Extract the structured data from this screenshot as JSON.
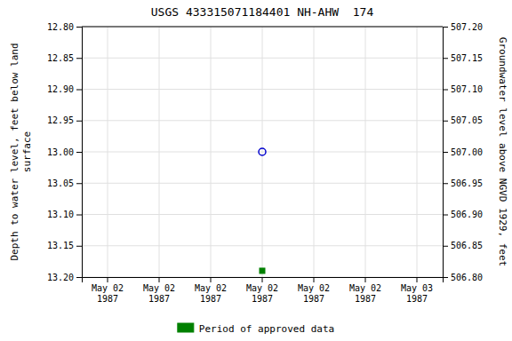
{
  "chart_data": {
    "type": "scatter",
    "title": "USGS 433315071184401 NH-AHW  174",
    "y_label": "Depth to water level, feet below land\nsurface",
    "y2_label": "Groundwater level above NGVD 1929, feet",
    "categories": [
      "May 02\n1987",
      "May 02\n1987",
      "May 02\n1987",
      "May 02\n1987",
      "May 02\n1987",
      "May 02\n1987",
      "May 03\n1987"
    ],
    "series": [
      {
        "color": "#0000cd",
        "marker": "circle",
        "values": [
          null,
          null,
          null,
          13.0,
          null,
          null,
          null
        ]
      },
      {
        "name": "Period of approved data",
        "color": "#008000",
        "marker": "square",
        "values": [
          null,
          null,
          null,
          13.19,
          null,
          null,
          null
        ]
      }
    ],
    "ylim": [
      13.2,
      12.8
    ],
    "yticks": [
      {
        "value": 12.8,
        "label": "12.80"
      },
      {
        "value": 12.85,
        "label": "12.85"
      },
      {
        "value": 12.9,
        "label": "12.90"
      },
      {
        "value": 12.95,
        "label": "12.95"
      },
      {
        "value": 13.0,
        "label": "13.00"
      },
      {
        "value": 13.05,
        "label": "13.05"
      },
      {
        "value": 13.1,
        "label": "13.10"
      },
      {
        "value": 13.15,
        "label": "13.15"
      },
      {
        "value": 13.2,
        "label": "13.20"
      }
    ],
    "y2lim": [
      506.8,
      507.2
    ],
    "y2ticks": [
      {
        "value": 507.2,
        "label": "507.20"
      },
      {
        "value": 507.15,
        "label": "507.15"
      },
      {
        "value": 507.1,
        "label": "507.10"
      },
      {
        "value": 507.05,
        "label": "507.05"
      },
      {
        "value": 507.0,
        "label": "507.00"
      },
      {
        "value": 506.95,
        "label": "506.95"
      },
      {
        "value": 506.9,
        "label": "506.90"
      },
      {
        "value": 506.85,
        "label": "506.85"
      },
      {
        "value": 506.8,
        "label": "506.80"
      }
    ],
    "grid": true,
    "legend": "bottom"
  }
}
